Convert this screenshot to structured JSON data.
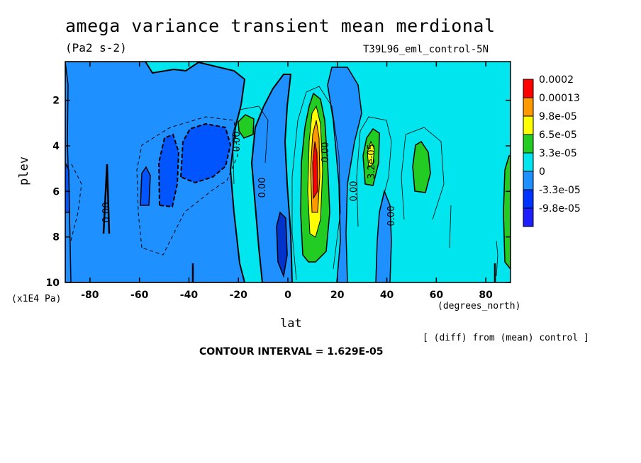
{
  "chart_data": {
    "type": "heatmap",
    "title": "amega variance transient mean merdional",
    "units": "(Pa2 s-2)",
    "dataset": "T39L96_eml_control-5N",
    "ylabel": "plev",
    "yunits": "(x1E4 Pa)",
    "xlabel": "lat",
    "xunits": "(degrees_north)",
    "note": "[ (diff) from (mean) control ]",
    "contour_interval": "CONTOUR INTERVAL = 1.629E-05",
    "xlim": [
      -90,
      90
    ],
    "ylim": [
      10,
      0.3
    ],
    "x_ticks": [
      -80,
      -60,
      -40,
      -20,
      0,
      20,
      40,
      60,
      80
    ],
    "y_ticks": [
      2,
      4,
      6,
      8,
      10
    ],
    "colorbar": {
      "levels": [
        "0.0002",
        "0.00013",
        "9.8e-05",
        "6.5e-05",
        "3.3e-05",
        "0",
        "-3.3e-05",
        "-9.8e-05"
      ],
      "colors": [
        "#ff0000",
        "#ff9900",
        "#ffff00",
        "#22cc22",
        "#00e5ee",
        "#1e90ff",
        "#0033ff",
        "#1e1eff"
      ]
    },
    "contour_labels": [
      "0.00",
      "0.00",
      "0.00",
      "0.00",
      "0.00",
      "0.00",
      "3.2e-05"
    ],
    "background_color": "#00e5ee"
  }
}
